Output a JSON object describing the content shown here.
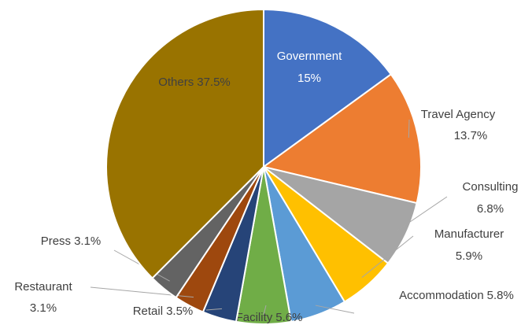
{
  "chart_data": {
    "type": "pie",
    "categories": [
      "Government",
      "Travel Agency",
      "Consulting",
      "Manufacturer",
      "Accommodation",
      "Facility",
      "Retail",
      "Restaurant",
      "Press",
      "Others"
    ],
    "values": [
      15,
      13.7,
      6.8,
      5.9,
      5.8,
      5.6,
      3.5,
      3.1,
      3.1,
      37.5
    ],
    "value_labels": [
      "15%",
      "13.7%",
      "6.8%",
      "5.9%",
      "5.8%",
      "5.6%",
      "3.5%",
      "3.1%",
      "3.1%",
      "37.5%"
    ],
    "colors": [
      "#4472c4",
      "#ed7d31",
      "#a5a5a5",
      "#ffc000",
      "#5b9bd5",
      "#70ad47",
      "#264478",
      "#9e480e",
      "#636363",
      "#997300"
    ]
  }
}
